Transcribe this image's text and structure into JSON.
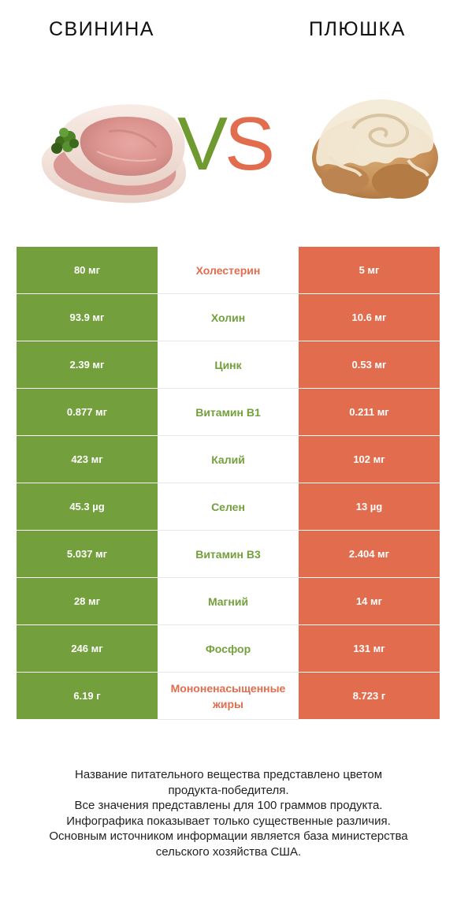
{
  "header": {
    "left_title": "СВИНИНА",
    "right_title": "ПЛЮШКА",
    "vs_v": "V",
    "vs_s": "S"
  },
  "colors": {
    "left_accent": "#73a03c",
    "right_accent": "#e26d4e"
  },
  "images": {
    "left": "pork-chop-photo",
    "right": "cinnamon-bun-photo"
  },
  "rows": [
    {
      "left": "80 мг",
      "nutrient": "Холестерин",
      "right": "5 мг",
      "winner": "right"
    },
    {
      "left": "93.9 мг",
      "nutrient": "Холин",
      "right": "10.6 мг",
      "winner": "left"
    },
    {
      "left": "2.39 мг",
      "nutrient": "Цинк",
      "right": "0.53 мг",
      "winner": "left"
    },
    {
      "left": "0.877 мг",
      "nutrient": "Витамин B1",
      "right": "0.211 мг",
      "winner": "left"
    },
    {
      "left": "423 мг",
      "nutrient": "Калий",
      "right": "102 мг",
      "winner": "left"
    },
    {
      "left": "45.3 µg",
      "nutrient": "Селен",
      "right": "13 µg",
      "winner": "left"
    },
    {
      "left": "5.037 мг",
      "nutrient": "Витамин B3",
      "right": "2.404 мг",
      "winner": "left"
    },
    {
      "left": "28 мг",
      "nutrient": "Магний",
      "right": "14 мг",
      "winner": "left"
    },
    {
      "left": "246 мг",
      "nutrient": "Фосфор",
      "right": "131 мг",
      "winner": "left"
    },
    {
      "left": "6.19 г",
      "nutrient": "Мононенасыщенные жиры",
      "right": "8.723 г",
      "winner": "right"
    }
  ],
  "footnote": {
    "line1": "Название питательного вещества представлено цветом",
    "line2": "продукта-победителя.",
    "line3": "Все значения представлены для 100 граммов продукта.",
    "line4": "Инфографика показывает только существенные различия.",
    "line5": "Основным источником информации является база министерства",
    "line6": "сельского хозяйства США."
  }
}
